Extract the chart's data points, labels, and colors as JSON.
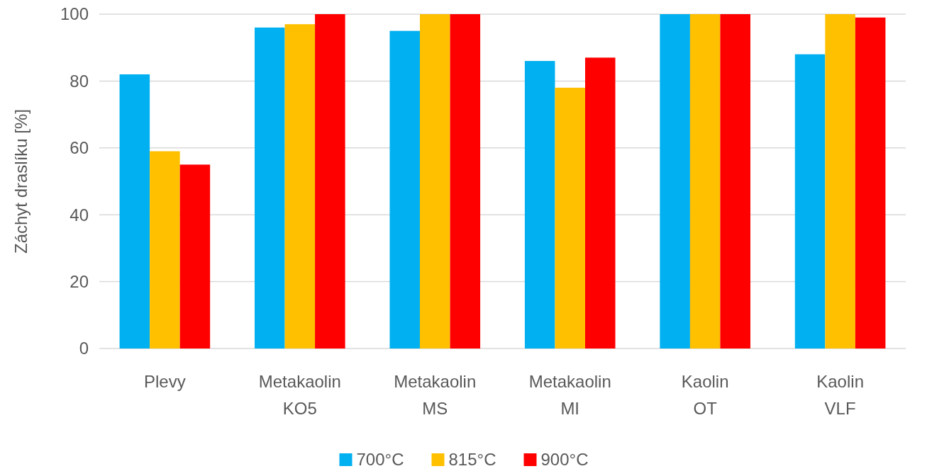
{
  "chart_data": {
    "type": "bar",
    "ylabel": "Záchyt draslíku [%]",
    "categories": [
      "Plevy",
      "Metakaolin KO5",
      "Metakaolin MS",
      "Metakaolin MI",
      "Kaolin OT",
      "Kaolin VLF"
    ],
    "series": [
      {
        "name": "700°C",
        "color": "#00b0f0",
        "values": [
          82,
          96,
          95,
          86,
          100,
          88
        ]
      },
      {
        "name": "815°C",
        "color": "#ffc000",
        "values": [
          59,
          97,
          100,
          78,
          100,
          100
        ]
      },
      {
        "name": "900°C",
        "color": "#ff0000",
        "values": [
          55,
          100,
          100,
          87,
          100,
          99
        ]
      }
    ],
    "ylim": [
      0,
      100
    ],
    "yticks": [
      0,
      20,
      40,
      60,
      80,
      100
    ],
    "grid": "y",
    "legend": "bottom"
  }
}
